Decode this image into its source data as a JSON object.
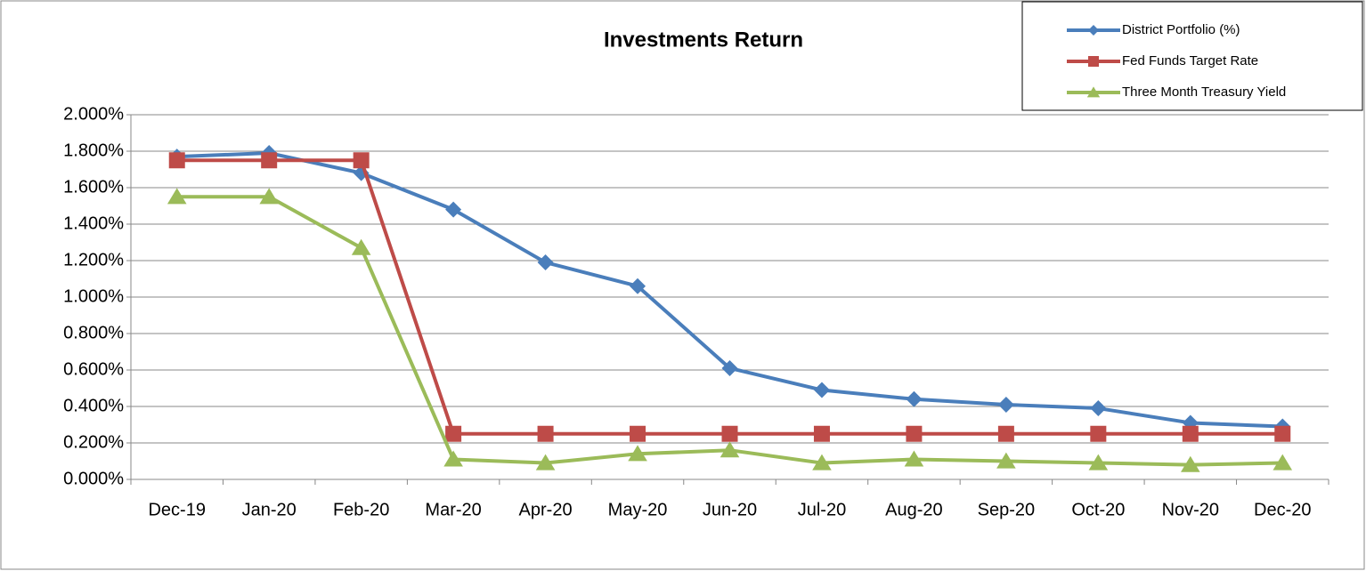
{
  "chart_data": {
    "type": "line",
    "title": "Investments Return",
    "categories": [
      "Dec-19",
      "Jan-20",
      "Feb-20",
      "Mar-20",
      "Apr-20",
      "May-20",
      "Jun-20",
      "Jul-20",
      "Aug-20",
      "Sep-20",
      "Oct-20",
      "Nov-20",
      "Dec-20"
    ],
    "series": [
      {
        "name": "District Portfolio (%)",
        "color": "#4a7ebb",
        "marker": "diamond",
        "values": [
          1.77,
          1.79,
          1.68,
          1.48,
          1.19,
          1.06,
          0.61,
          0.49,
          0.44,
          0.41,
          0.39,
          0.31,
          0.29
        ]
      },
      {
        "name": "Fed Funds Target Rate",
        "color": "#be4b48",
        "marker": "square",
        "values": [
          1.75,
          1.75,
          1.75,
          0.25,
          0.25,
          0.25,
          0.25,
          0.25,
          0.25,
          0.25,
          0.25,
          0.25,
          0.25
        ]
      },
      {
        "name": "Three Month Treasury Yield",
        "color": "#9bbb59",
        "marker": "triangle",
        "values": [
          1.55,
          1.55,
          1.27,
          0.11,
          0.09,
          0.14,
          0.16,
          0.09,
          0.11,
          0.1,
          0.09,
          0.08,
          0.09
        ]
      }
    ],
    "ylim": [
      0,
      2
    ],
    "yticks": [
      {
        "value": 0,
        "label": "0.000%"
      },
      {
        "value": 0.2,
        "label": "0.200%"
      },
      {
        "value": 0.4,
        "label": "0.400%"
      },
      {
        "value": 0.6,
        "label": "0.600%"
      },
      {
        "value": 0.8,
        "label": "0.800%"
      },
      {
        "value": 1,
        "label": "1.000%"
      },
      {
        "value": 1.2,
        "label": "1.200%"
      },
      {
        "value": 1.4,
        "label": "1.400%"
      },
      {
        "value": 1.6,
        "label": "1.600%"
      },
      {
        "value": 1.8,
        "label": "1.800%"
      },
      {
        "value": 2,
        "label": "2.000%"
      }
    ],
    "grid": true,
    "legend": "top-right"
  }
}
